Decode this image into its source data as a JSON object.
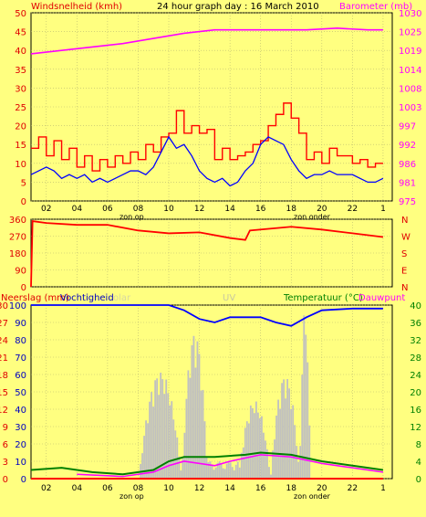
{
  "title": "24 hour graph day : 16 March 2010",
  "colors": {
    "background": "#ffff80",
    "wind_gust": "#ff0000",
    "wind_avg": "#0000ff",
    "barometer": "#ff00ff",
    "direction": "#ff0000",
    "humidity": "#0000ff",
    "temperature": "#008000",
    "dewpoint": "#ff00ff",
    "solar": "#c0c0c0",
    "rain": "#ff0000"
  },
  "chart_data": [
    {
      "type": "line",
      "title": "24 hour graph day : 16 March 2010",
      "y_left_label": "Windsnelheid (kmh)",
      "y_right_label": "Barometer (mb)",
      "y_left_ticks": [
        0,
        5,
        10,
        15,
        20,
        25,
        30,
        35,
        40,
        45,
        50
      ],
      "y_right_ticks": [
        975,
        981,
        986,
        992,
        997,
        1003,
        1008,
        1014,
        1019,
        1025,
        1030
      ],
      "x_tick_labels": [
        "02",
        "04",
        "06",
        "08",
        "10",
        "12",
        "14",
        "16",
        "18",
        "20",
        "22",
        "1"
      ],
      "annotations": [
        "zon op",
        "zon onder"
      ],
      "ylim": [
        0,
        50
      ],
      "y_right_lim": [
        975,
        1030
      ],
      "series": [
        {
          "name": "Windsnelheid (kmh)",
          "axis": "left",
          "points": [
            [
              0,
              14
            ],
            [
              0.5,
              17
            ],
            [
              1,
              12
            ],
            [
              1.5,
              16
            ],
            [
              2,
              11
            ],
            [
              2.5,
              14
            ],
            [
              3,
              9
            ],
            [
              3.5,
              12
            ],
            [
              4,
              8
            ],
            [
              4.5,
              11
            ],
            [
              5,
              9
            ],
            [
              5.5,
              12
            ],
            [
              6,
              10
            ],
            [
              6.5,
              13
            ],
            [
              7,
              11
            ],
            [
              7.5,
              15
            ],
            [
              8,
              13
            ],
            [
              8.5,
              17
            ],
            [
              9,
              18
            ],
            [
              9.5,
              24
            ],
            [
              10,
              18
            ],
            [
              10.5,
              20
            ],
            [
              11,
              18
            ],
            [
              11.5,
              19
            ],
            [
              12,
              11
            ],
            [
              12.5,
              14
            ],
            [
              13,
              11
            ],
            [
              13.5,
              12
            ],
            [
              14,
              13
            ],
            [
              14.5,
              15
            ],
            [
              15,
              16
            ],
            [
              15.5,
              20
            ],
            [
              16,
              23
            ],
            [
              16.5,
              26
            ],
            [
              17,
              22
            ],
            [
              17.5,
              18
            ],
            [
              18,
              11
            ],
            [
              18.5,
              13
            ],
            [
              19,
              10
            ],
            [
              19.5,
              14
            ],
            [
              20,
              12
            ],
            [
              20.5,
              12
            ],
            [
              21,
              10
            ],
            [
              21.5,
              11
            ],
            [
              22,
              9
            ],
            [
              22.5,
              10
            ],
            [
              23,
              10
            ]
          ]
        },
        {
          "name": "Wind average",
          "axis": "left",
          "points": [
            [
              0,
              7
            ],
            [
              0.5,
              8
            ],
            [
              1,
              9
            ],
            [
              1.5,
              8
            ],
            [
              2,
              6
            ],
            [
              2.5,
              7
            ],
            [
              3,
              6
            ],
            [
              3.5,
              7
            ],
            [
              4,
              5
            ],
            [
              4.5,
              6
            ],
            [
              5,
              5
            ],
            [
              5.5,
              6
            ],
            [
              6,
              7
            ],
            [
              6.5,
              8
            ],
            [
              7,
              8
            ],
            [
              7.5,
              7
            ],
            [
              8,
              9
            ],
            [
              8.5,
              13
            ],
            [
              9,
              17
            ],
            [
              9.5,
              14
            ],
            [
              10,
              15
            ],
            [
              10.5,
              12
            ],
            [
              11,
              8
            ],
            [
              11.5,
              6
            ],
            [
              12,
              5
            ],
            [
              12.5,
              6
            ],
            [
              13,
              4
            ],
            [
              13.5,
              5
            ],
            [
              14,
              8
            ],
            [
              14.5,
              10
            ],
            [
              15,
              15
            ],
            [
              15.5,
              17
            ],
            [
              16,
              16
            ],
            [
              16.5,
              15
            ],
            [
              17,
              11
            ],
            [
              17.5,
              8
            ],
            [
              18,
              6
            ],
            [
              18.5,
              7
            ],
            [
              19,
              7
            ],
            [
              19.5,
              8
            ],
            [
              20,
              7
            ],
            [
              20.5,
              7
            ],
            [
              21,
              7
            ],
            [
              21.5,
              6
            ],
            [
              22,
              5
            ],
            [
              22.5,
              5
            ],
            [
              23,
              6
            ]
          ]
        },
        {
          "name": "Barometer (mb)",
          "axis": "right",
          "points": [
            [
              0,
              1018
            ],
            [
              2,
              1019
            ],
            [
              4,
              1020
            ],
            [
              6,
              1021
            ],
            [
              8,
              1022.5
            ],
            [
              10,
              1024
            ],
            [
              12,
              1025
            ],
            [
              14,
              1025
            ],
            [
              16,
              1025
            ],
            [
              18,
              1025
            ],
            [
              20,
              1025.5
            ],
            [
              22,
              1025
            ],
            [
              23,
              1025
            ]
          ]
        }
      ]
    },
    {
      "type": "line",
      "y_ticks": [
        0,
        90,
        180,
        270,
        360
      ],
      "y_right_labels": [
        "N",
        "W",
        "S",
        "E",
        "N"
      ],
      "ylim": [
        0,
        360
      ],
      "series": [
        {
          "name": "Wind direction",
          "points": [
            [
              0,
              0
            ],
            [
              0.1,
              350
            ],
            [
              1,
              340
            ],
            [
              3,
              330
            ],
            [
              5,
              330
            ],
            [
              7,
              300
            ],
            [
              9,
              285
            ],
            [
              11,
              290
            ],
            [
              13,
              260
            ],
            [
              14,
              250
            ],
            [
              14.3,
              300
            ],
            [
              17,
              320
            ],
            [
              19,
              305
            ],
            [
              21,
              285
            ],
            [
              23,
              265
            ]
          ]
        }
      ]
    },
    {
      "type": "line",
      "y_left_label": "Neerslag (mm)",
      "y_left_label_2": "Vochtigheid",
      "y_solar_label": "olar",
      "y_uv_label": "UV",
      "y_right_label": "Temperatuur (°C)",
      "y_right_label_2": "Dauwpunt",
      "y_left_ticks": [
        0,
        10,
        20,
        30,
        40,
        50,
        60,
        70,
        80,
        90,
        100
      ],
      "y_left_ticks_2": [
        0,
        3,
        6,
        9,
        12,
        15,
        18,
        21,
        24,
        27,
        30
      ],
      "y_right_ticks": [
        0,
        4,
        8,
        12,
        16,
        20,
        24,
        28,
        32,
        36,
        40
      ],
      "x_tick_labels": [
        "02",
        "04",
        "06",
        "08",
        "10",
        "12",
        "14",
        "16",
        "18",
        "20",
        "22",
        "1"
      ],
      "annotations": [
        "zon op",
        "zon onder"
      ],
      "series": [
        {
          "name": "Vochtigheid",
          "axis": "left",
          "points": [
            [
              0,
              100
            ],
            [
              3,
              100
            ],
            [
              6,
              100
            ],
            [
              9,
              100
            ],
            [
              10,
              97
            ],
            [
              11,
              92
            ],
            [
              12,
              90
            ],
            [
              13,
              93
            ],
            [
              15,
              93
            ],
            [
              16,
              90
            ],
            [
              17,
              88
            ],
            [
              18,
              93
            ],
            [
              19,
              97
            ],
            [
              21,
              98
            ],
            [
              23,
              98
            ]
          ]
        },
        {
          "name": "Temperatuur (°C)",
          "axis": "right",
          "points": [
            [
              0,
              2
            ],
            [
              2,
              2.5
            ],
            [
              4,
              1.5
            ],
            [
              6,
              1
            ],
            [
              8,
              2
            ],
            [
              9,
              4
            ],
            [
              10,
              5
            ],
            [
              12,
              5
            ],
            [
              14,
              5.5
            ],
            [
              15,
              6
            ],
            [
              17,
              5.5
            ],
            [
              19,
              4
            ],
            [
              21,
              3
            ],
            [
              23,
              2
            ]
          ]
        },
        {
          "name": "Dauwpunt",
          "axis": "right",
          "points": [
            [
              3,
              1
            ],
            [
              6,
              0.5
            ],
            [
              8,
              1.5
            ],
            [
              9,
              3
            ],
            [
              10,
              4
            ],
            [
              12,
              3
            ],
            [
              13,
              4
            ],
            [
              15,
              5.5
            ],
            [
              17,
              5
            ],
            [
              19,
              3.5
            ],
            [
              21,
              2.5
            ],
            [
              23,
              1.5
            ]
          ]
        },
        {
          "name": "Neerslag (mm)",
          "axis": "left",
          "points": [
            [
              0,
              0
            ],
            [
              23,
              0
            ]
          ]
        }
      ]
    }
  ]
}
